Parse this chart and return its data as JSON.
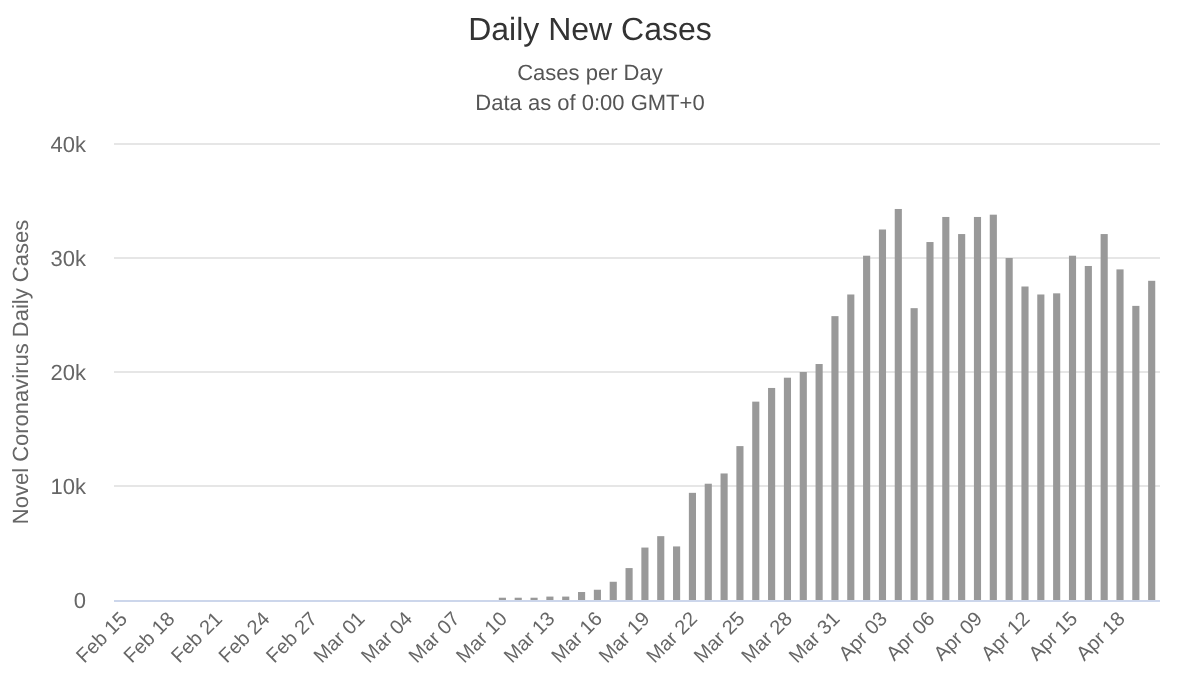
{
  "chart_data": {
    "type": "bar",
    "title": "Daily New Cases",
    "subtitle": "Cases per Day\nData as of 0:00 GMT+0",
    "ylabel": "Novel Coronavirus Daily Cases",
    "categories": [
      "Feb 15",
      null,
      null,
      "Feb 18",
      null,
      null,
      "Feb 21",
      null,
      null,
      "Feb 24",
      null,
      null,
      "Feb 27",
      null,
      null,
      "Mar 01",
      null,
      null,
      "Mar 04",
      null,
      null,
      "Mar 07",
      null,
      null,
      "Mar 10",
      null,
      null,
      "Mar 13",
      null,
      null,
      "Mar 16",
      null,
      null,
      "Mar 19",
      null,
      null,
      "Mar 22",
      null,
      null,
      "Mar 25",
      null,
      null,
      "Mar 28",
      null,
      null,
      "Mar 31",
      null,
      null,
      "Apr 03",
      null,
      null,
      "Apr 06",
      null,
      null,
      "Apr 09",
      null,
      null,
      "Apr 12",
      null,
      null,
      "Apr 15",
      null,
      null,
      "Apr 18",
      null,
      null
    ],
    "values": [
      0,
      0,
      0,
      0,
      0,
      0,
      0,
      0,
      0,
      0,
      0,
      0,
      0,
      0,
      0,
      0,
      0,
      0,
      0,
      0,
      0,
      0,
      0,
      0,
      0.2,
      0.2,
      0.2,
      0.3,
      0.3,
      0.7,
      0.9,
      1.6,
      2.8,
      4.6,
      5.6,
      4.7,
      9.4,
      10.2,
      11.1,
      13.5,
      17.4,
      18.6,
      19.5,
      20.0,
      20.7,
      24.9,
      26.8,
      30.2,
      32.5,
      34.3,
      25.6,
      31.4,
      33.6,
      32.1,
      33.6,
      33.8,
      30.0,
      27.5,
      26.8,
      26.9,
      30.2,
      29.3,
      32.1,
      29.0,
      25.8,
      28.0
    ],
    "color": "#999999",
    "ylim": [
      0,
      40
    ],
    "yticks": [
      {
        "value": 0,
        "label": "0"
      },
      {
        "value": 10,
        "label": "10k"
      },
      {
        "value": 20,
        "label": "20k"
      },
      {
        "value": 30,
        "label": "30k"
      },
      {
        "value": 40,
        "label": "40k"
      }
    ],
    "grid": "y"
  }
}
